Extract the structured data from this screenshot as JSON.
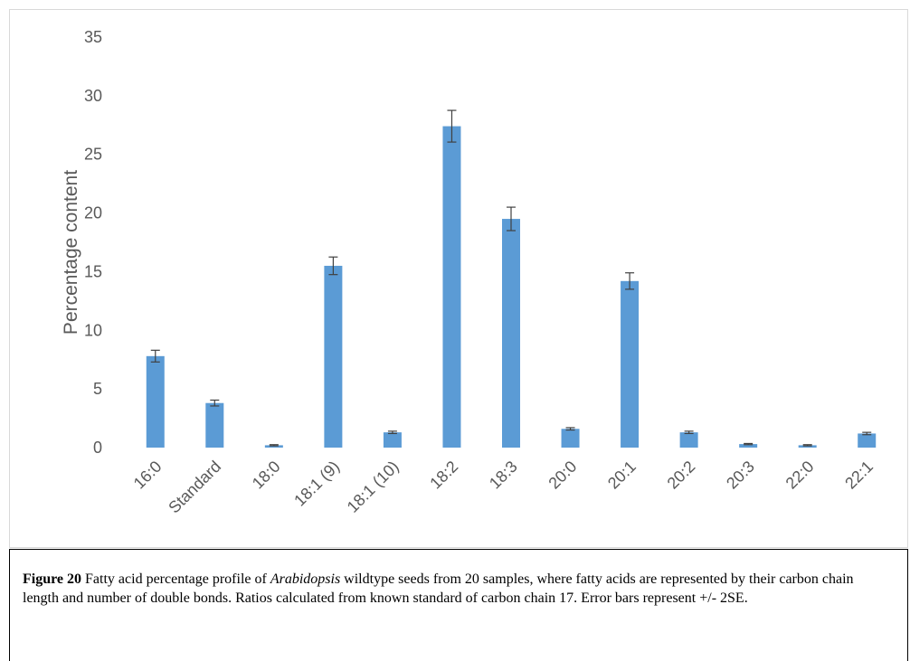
{
  "chart_data": {
    "type": "bar",
    "title": "",
    "xlabel": "",
    "ylabel": "Percentage content",
    "ylim": [
      0,
      35
    ],
    "yticks": [
      "0",
      "5",
      "10",
      "15",
      "20",
      "25",
      "30",
      "35"
    ],
    "grid": false,
    "legend": "none",
    "categories": [
      "16:0",
      "Standard",
      "18:0",
      "18:1 (9)",
      "18:1 (10)",
      "18:2",
      "18:3",
      "20:0",
      "20:1",
      "20:2",
      "20:3",
      "22:0",
      "22:1"
    ],
    "values": [
      7.8,
      3.8,
      0.2,
      15.5,
      1.3,
      27.4,
      19.5,
      1.6,
      14.2,
      1.3,
      0.3,
      0.2,
      1.2
    ],
    "error_bars": [
      0.5,
      0.25,
      0.05,
      0.75,
      0.1,
      1.35,
      1.0,
      0.1,
      0.7,
      0.1,
      0.05,
      0.05,
      0.1
    ],
    "bar_color": "#5b9bd5",
    "error_color": "#404040"
  },
  "caption": {
    "label": "Figure 20",
    "text_before": " Fatty acid percentage profile of ",
    "italic": "Arabidopsis",
    "text_after": " wildtype seeds from 20 samples, where fatty acids are represented by their carbon chain length and number of double bonds. Ratios calculated from known standard of carbon chain 17. Error bars represent +/- 2SE."
  }
}
